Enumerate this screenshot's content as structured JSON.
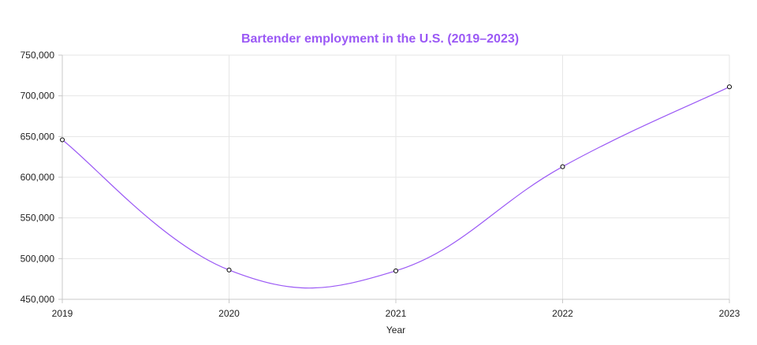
{
  "chart_data": {
    "type": "line",
    "title": "Bartender employment in the U.S. (2019–2023)",
    "xlabel": "Year",
    "ylabel": "",
    "categories": [
      "2019",
      "2020",
      "2021",
      "2022",
      "2023"
    ],
    "series": [
      {
        "values": [
          646000,
          486000,
          485000,
          613000,
          711000
        ]
      }
    ],
    "ylim": [
      450000,
      750000
    ],
    "yticks": [
      450000,
      500000,
      550000,
      600000,
      650000,
      700000,
      750000
    ],
    "ytick_labels": [
      "450,000",
      "500,000",
      "550,000",
      "600,000",
      "650,000",
      "700,000",
      "750,000"
    ],
    "grid": true,
    "legend": "none",
    "colors": {
      "line": "#9b59f5",
      "title": "#9b59f5",
      "point_stroke": "#000000",
      "point_fill": "#ffffff"
    }
  }
}
